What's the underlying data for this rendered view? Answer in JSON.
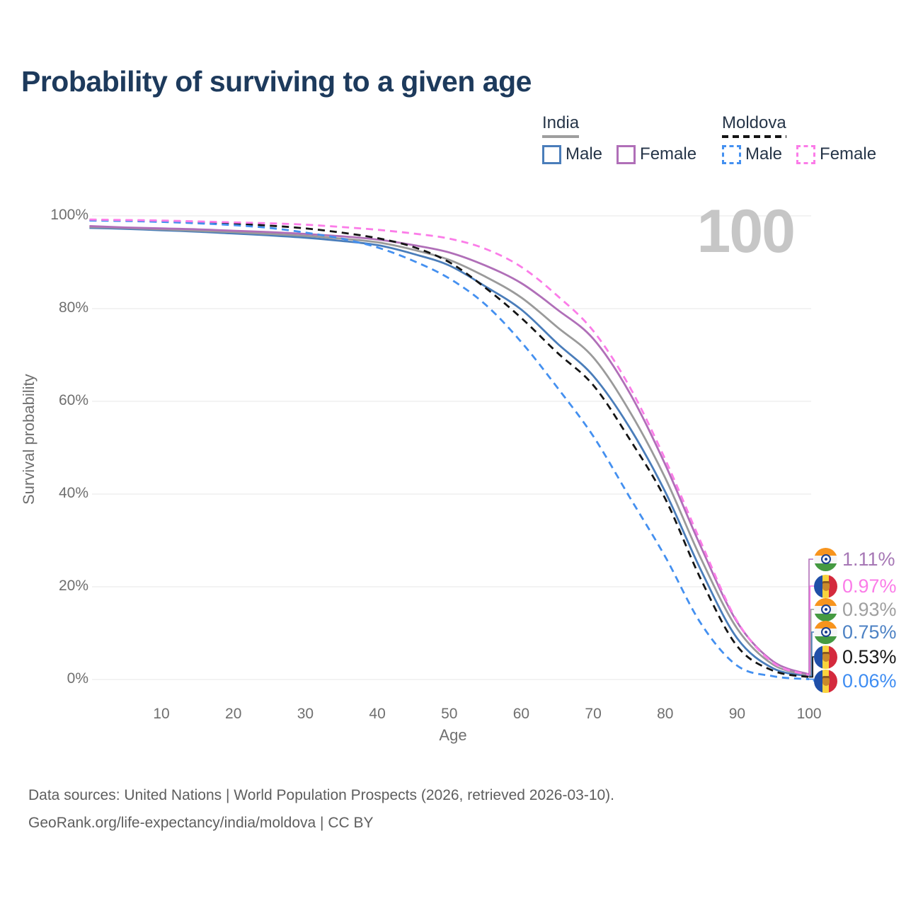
{
  "title": "Probability of surviving to a given age",
  "watermark": "100",
  "legend": {
    "groups": [
      {
        "name": "India",
        "line_style": "solid",
        "underline_color": "#9e9e9e",
        "items": [
          {
            "label": "Male",
            "color": "#4a7dba"
          },
          {
            "label": "Female",
            "color": "#b06fb8"
          }
        ]
      },
      {
        "name": "Moldova",
        "line_style": "dashed",
        "underline_color": "#141414",
        "items": [
          {
            "label": "Male",
            "color": "#4490f0"
          },
          {
            "label": "Female",
            "color": "#fb7ce8"
          }
        ]
      }
    ]
  },
  "chart_data": {
    "type": "line",
    "title": "Probability of surviving to a given age",
    "xlabel": "Age",
    "ylabel": "Survival probability",
    "xlim": [
      0,
      100
    ],
    "ylim": [
      0,
      100
    ],
    "grid": "horizontal",
    "legend_position": "top-right",
    "x_ticks": [
      10,
      20,
      30,
      40,
      50,
      60,
      70,
      80,
      90,
      100
    ],
    "y_ticks": [
      {
        "value": 0,
        "label": "0%"
      },
      {
        "value": 20,
        "label": "20%"
      },
      {
        "value": 40,
        "label": "40%"
      },
      {
        "value": 60,
        "label": "60%"
      },
      {
        "value": 80,
        "label": "80%"
      },
      {
        "value": 100,
        "label": "100%"
      }
    ],
    "x": [
      0,
      5,
      10,
      15,
      20,
      25,
      30,
      35,
      40,
      45,
      50,
      55,
      60,
      65,
      70,
      75,
      80,
      85,
      90,
      95,
      100
    ],
    "series": [
      {
        "name": "India Male",
        "country": "India",
        "sex": "Male",
        "color": "#4a7dba",
        "dash": "solid",
        "end_label": "0.75%",
        "values": [
          97.4,
          97.2,
          96.9,
          96.6,
          96.2,
          95.8,
          95.3,
          94.6,
          93.7,
          91.8,
          89.3,
          84.8,
          79.8,
          72.5,
          65.5,
          54.5,
          40.5,
          23.5,
          8.9,
          2.4,
          0.75
        ]
      },
      {
        "name": "India Female",
        "country": "India",
        "sex": "Female",
        "color": "#b06fb8",
        "dash": "solid",
        "end_label": "1.11%",
        "values": [
          97.8,
          97.5,
          97.3,
          97.1,
          96.8,
          96.5,
          96.1,
          95.6,
          94.9,
          93.7,
          92.1,
          89.3,
          85.5,
          79.8,
          73.5,
          62.0,
          46.4,
          28.5,
          12.4,
          3.9,
          1.11
        ]
      },
      {
        "name": "India",
        "country": "India",
        "sex": "Both",
        "color": "#9a9a9a",
        "dash": "solid",
        "end_label": "0.93%",
        "values": [
          97.6,
          97.4,
          97.1,
          96.8,
          96.5,
          96.1,
          95.7,
          95.1,
          94.3,
          92.7,
          90.5,
          86.9,
          82.4,
          76.0,
          69.5,
          58.0,
          43.5,
          26.0,
          11.0,
          3.2,
          0.93
        ]
      },
      {
        "name": "Moldova Male",
        "country": "Moldova",
        "sex": "Male",
        "color": "#4490f0",
        "dash": "dashed",
        "end_label": "0.06%",
        "values": [
          99.0,
          98.9,
          98.7,
          98.4,
          98.0,
          97.4,
          96.4,
          95.1,
          93.2,
          90.3,
          86.5,
          80.9,
          72.8,
          63.0,
          52.5,
          39.5,
          26.5,
          12.0,
          3.0,
          0.7,
          0.06
        ]
      },
      {
        "name": "Moldova Female",
        "country": "Moldova",
        "sex": "Female",
        "color": "#fb7ce8",
        "dash": "dashed",
        "end_label": "0.97%",
        "values": [
          99.2,
          99.1,
          99.0,
          98.8,
          98.6,
          98.4,
          98.1,
          97.6,
          97.0,
          96.2,
          95.1,
          92.9,
          89.0,
          82.8,
          75.2,
          63.3,
          47.5,
          29.5,
          12.6,
          3.6,
          0.97
        ]
      },
      {
        "name": "Moldova",
        "country": "Moldova",
        "sex": "Both",
        "color": "#141414",
        "dash": "dashed",
        "end_label": "0.53%",
        "values": [
          99.1,
          99.0,
          98.85,
          98.6,
          98.3,
          97.9,
          97.3,
          96.4,
          95.2,
          93.3,
          90.0,
          84.5,
          78.0,
          70.5,
          63.5,
          52.0,
          39.0,
          21.5,
          7.2,
          1.9,
          0.53
        ]
      }
    ]
  },
  "end_labels": [
    {
      "value": "1.11%",
      "series": "India Female",
      "flag": "india",
      "color": "#a677b5"
    },
    {
      "value": "0.97%",
      "series": "Moldova Female",
      "flag": "moldova",
      "color": "#fb7ce8"
    },
    {
      "value": "0.93%",
      "series": "India",
      "flag": "india",
      "color": "#a0a0a0"
    },
    {
      "value": "0.75%",
      "series": "India Male",
      "flag": "india",
      "color": "#4d82c4"
    },
    {
      "value": "0.53%",
      "series": "Moldova",
      "flag": "moldova",
      "color": "#1a1a1a"
    },
    {
      "value": "0.06%",
      "series": "Moldova Male",
      "flag": "moldova",
      "color": "#3f8df2"
    }
  ],
  "footer": {
    "line1": "Data sources: United Nations | World Population Prospects (2026, retrieved 2026-03-10).",
    "line2": "GeoRank.org/life-expectancy/india/moldova | CC BY"
  }
}
